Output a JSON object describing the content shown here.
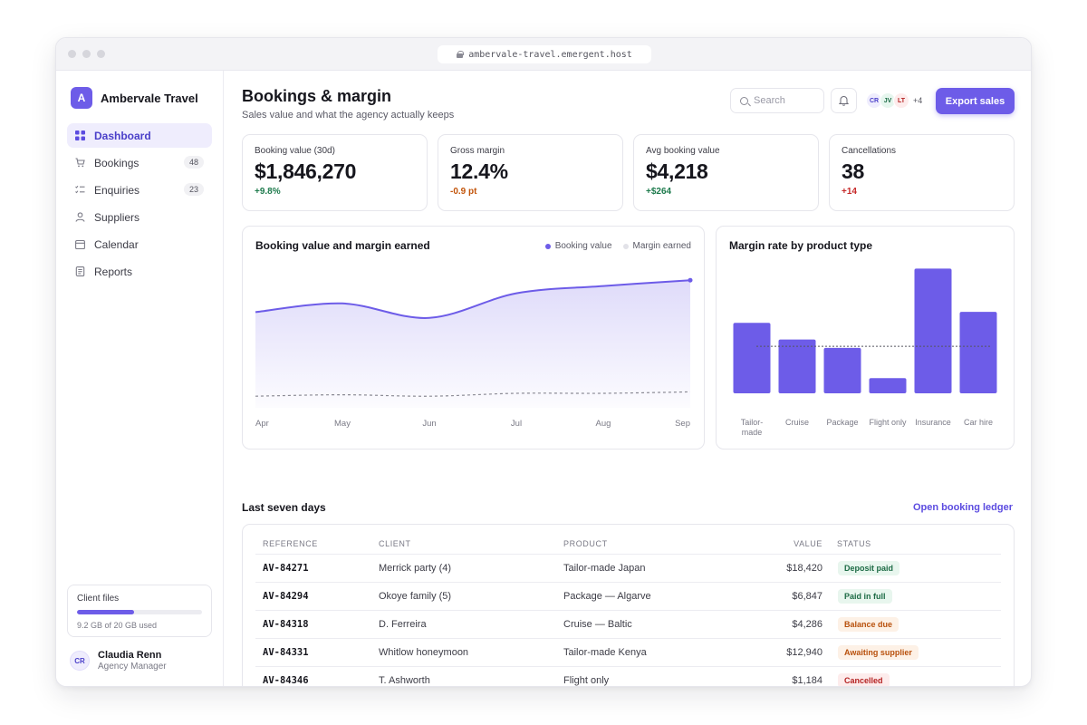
{
  "window": {
    "url": "ambervale-travel.emergent.host"
  },
  "brand": {
    "logo_letter": "A",
    "name": "Ambervale Travel"
  },
  "sidebar": {
    "items": [
      {
        "label": "Dashboard",
        "icon": "grid-icon",
        "badge": null
      },
      {
        "label": "Bookings",
        "icon": "cart-icon",
        "badge": "48"
      },
      {
        "label": "Enquiries",
        "icon": "list-icon",
        "badge": "23"
      },
      {
        "label": "Suppliers",
        "icon": "person-icon",
        "badge": null
      },
      {
        "label": "Calendar",
        "icon": "calendar-icon",
        "badge": null
      },
      {
        "label": "Reports",
        "icon": "document-icon",
        "badge": null
      }
    ],
    "storage": {
      "label": "Client files",
      "used_text": "9.2 GB of 20 GB used",
      "fraction": 0.46
    },
    "user": {
      "initials": "CR",
      "name": "Claudia Renn",
      "role": "Agency Manager"
    }
  },
  "header": {
    "title": "Bookings & margin",
    "subtitle": "Sales value and what the agency actually keeps",
    "search_placeholder": "Search",
    "avatars": [
      {
        "initials": "CR",
        "bg": "#efedfd",
        "fg": "#4a3fc9"
      },
      {
        "initials": "JV",
        "bg": "#e6f6ee",
        "fg": "#1d6b45"
      },
      {
        "initials": "LT",
        "bg": "#fdecec",
        "fg": "#b42323"
      }
    ],
    "avatars_more": "+4",
    "export_label": "Export sales"
  },
  "kpis": [
    {
      "label": "Booking value (30d)",
      "value": "$1,846,270",
      "delta": "+9.8%",
      "trend": "up"
    },
    {
      "label": "Gross margin",
      "value": "12.4%",
      "delta": "-0.9 pt",
      "trend": "down"
    },
    {
      "label": "Avg booking value",
      "value": "$4,218",
      "delta": "+$264",
      "trend": "up"
    },
    {
      "label": "Cancellations",
      "value": "38",
      "delta": "+14",
      "trend": "bad"
    }
  ],
  "colors": {
    "accent": "#6d5ce8",
    "positive": "#1d7a4c",
    "warning": "#c2540a",
    "negative": "#c62828"
  },
  "chart_data": [
    {
      "type": "area",
      "title": "Booking value and margin earned",
      "categories": [
        "Apr",
        "May",
        "Jun",
        "Jul",
        "Aug",
        "Sep"
      ],
      "legend_position": "top-right",
      "grid": false,
      "y_axis_labels": false,
      "series": [
        {
          "name": "Booking value",
          "values": [
            66,
            72,
            62,
            79,
            84,
            88
          ],
          "color": "#6d5ce8"
        },
        {
          "name": "Margin earned",
          "values": [
            8,
            9,
            8,
            10,
            10,
            11
          ],
          "color": "#8a8a94"
        }
      ],
      "ylim": [
        0,
        100
      ]
    },
    {
      "type": "bar",
      "title": "Margin rate by product type",
      "categories": [
        "Tailor-made",
        "Cruise",
        "Package",
        "Flight only",
        "Insurance",
        "Car hire"
      ],
      "values": [
        13.5,
        10.3,
        8.7,
        2.9,
        23.9,
        15.6
      ],
      "reference_line": 9,
      "grid": false,
      "ylim": [
        0,
        25
      ],
      "color": "#6d5ce8"
    }
  ],
  "table": {
    "section_title": "Last seven days",
    "link_label": "Open booking ledger",
    "columns": [
      "REFERENCE",
      "CLIENT",
      "PRODUCT",
      "VALUE",
      "STATUS"
    ],
    "rows": [
      {
        "ref": "AV-84271",
        "client": "Merrick party (4)",
        "product": "Tailor-made Japan",
        "value": "$18,420",
        "status": "Deposit paid",
        "status_kind": "green"
      },
      {
        "ref": "AV-84294",
        "client": "Okoye family (5)",
        "product": "Package — Algarve",
        "value": "$6,847",
        "status": "Paid in full",
        "status_kind": "green"
      },
      {
        "ref": "AV-84318",
        "client": "D. Ferreira",
        "product": "Cruise — Baltic",
        "value": "$4,286",
        "status": "Balance due",
        "status_kind": "orange"
      },
      {
        "ref": "AV-84331",
        "client": "Whitlow honeymoon",
        "product": "Tailor-made Kenya",
        "value": "$12,940",
        "status": "Awaiting supplier",
        "status_kind": "orange"
      },
      {
        "ref": "AV-84346",
        "client": "T. Ashworth",
        "product": "Flight only",
        "value": "$1,184",
        "status": "Cancelled",
        "status_kind": "red"
      }
    ]
  }
}
